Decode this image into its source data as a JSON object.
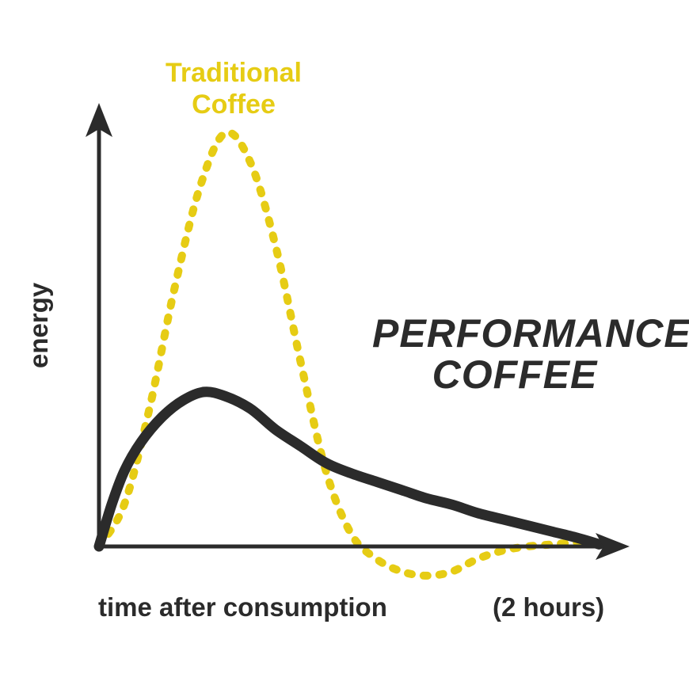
{
  "colors": {
    "traditional": "#e6cc14",
    "performance": "#2b2b2b",
    "axis": "#2b2b2b",
    "text": "#2b2b2b"
  },
  "chart_data": {
    "type": "line",
    "title": "",
    "xlabel": "time after consumption",
    "xlabel_note": "(2 hours)",
    "ylabel": "energy",
    "xlim": [
      0,
      120
    ],
    "ylim": [
      -8,
      100
    ],
    "grid": false,
    "legend": "none",
    "series": [
      {
        "name": "Traditional Coffee",
        "style": "dotted",
        "x": [
          0,
          6,
          12,
          18,
          24,
          30,
          36,
          42,
          48,
          54,
          60,
          66,
          72,
          78,
          84,
          90,
          96,
          102,
          108,
          114,
          118
        ],
        "y": [
          0,
          10,
          33,
          62,
          86,
          99,
          92,
          72,
          44,
          18,
          3,
          -3,
          -6,
          -7,
          -6,
          -3,
          -1,
          0,
          0.5,
          1,
          1
        ]
      },
      {
        "name": "PERFORMANCE COFFEE",
        "style": "solid",
        "x": [
          0,
          3,
          6,
          10,
          15,
          20,
          25,
          30,
          36,
          42,
          48,
          54,
          60,
          66,
          72,
          78,
          84,
          90,
          96,
          102,
          108,
          114,
          119
        ],
        "y": [
          0,
          10,
          18,
          25,
          31,
          35,
          37,
          36,
          33,
          28,
          24,
          20,
          17.5,
          15.5,
          13.5,
          11.5,
          10,
          8,
          6.5,
          5,
          3.5,
          2,
          0.5
        ]
      }
    ]
  }
}
